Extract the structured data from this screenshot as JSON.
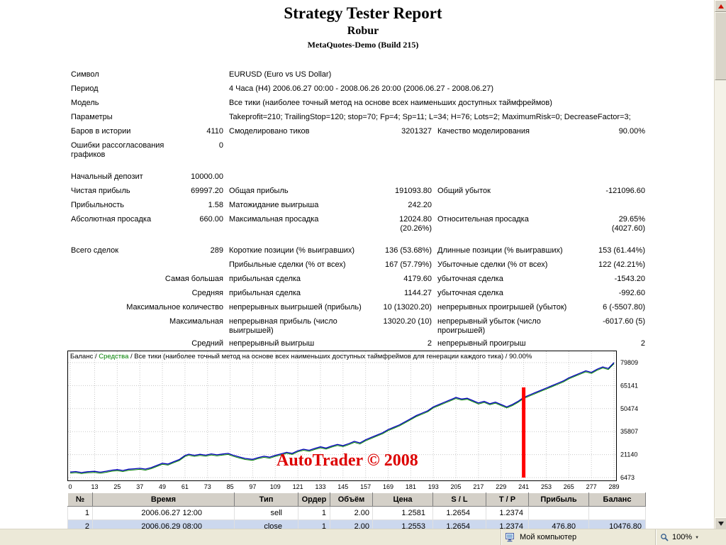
{
  "header": {
    "title": "Strategy Tester Report",
    "subtitle": "Robur",
    "server": "MetaQuotes-Demo (Build 215)"
  },
  "report": {
    "rows": [
      {
        "cells": [
          {
            "col": 1,
            "cls": "lab",
            "t": "Символ"
          },
          {
            "col": 3,
            "span": 4,
            "cls": "lab",
            "t": "EURUSD (Euro vs US Dollar)"
          }
        ]
      },
      {
        "cells": [
          {
            "col": 1,
            "cls": "lab",
            "t": "Период"
          },
          {
            "col": 3,
            "span": 4,
            "cls": "lab",
            "t": "4 Часа (H4) 2006.06.27 00:00 - 2008.06.26 20:00 (2006.06.27 - 2008.06.27)"
          }
        ]
      },
      {
        "cells": [
          {
            "col": 1,
            "cls": "lab",
            "t": "Модель"
          },
          {
            "col": 3,
            "span": 4,
            "cls": "lab",
            "t": "Все тики (наиболее точный метод на основе всех наименьших доступных таймфреймов)"
          }
        ]
      },
      {
        "cells": [
          {
            "col": 1,
            "cls": "lab",
            "t": "Параметры"
          },
          {
            "col": 3,
            "span": 4,
            "cls": "lab",
            "t": "Takeprofit=210; TrailingStop=120; stop=70; Fp=4; Sp=11; L=34; H=76; Lots=2; MaximumRisk=0; DecreaseFactor=3;"
          }
        ]
      },
      {
        "cells": [
          {
            "col": 1,
            "cls": "lab",
            "t": "Баров в истории"
          },
          {
            "col": 2,
            "cls": "val",
            "t": "4110"
          },
          {
            "col": 3,
            "cls": "lab",
            "t": "Смоделировано тиков"
          },
          {
            "col": 4,
            "cls": "val",
            "t": "3201327"
          },
          {
            "col": 5,
            "cls": "lab",
            "t": "Качество моделирования"
          },
          {
            "col": 6,
            "cls": "val",
            "t": "90.00%"
          }
        ]
      },
      {
        "h2": true,
        "cells": [
          {
            "col": 1,
            "cls": "lab",
            "t": "Ошибки рассогласования\nграфиков"
          },
          {
            "col": 2,
            "cls": "val",
            "t": "0"
          }
        ]
      },
      {
        "spacer": true
      },
      {
        "cells": [
          {
            "col": 1,
            "cls": "lab",
            "t": "Начальный депозит"
          },
          {
            "col": 2,
            "cls": "val",
            "t": "10000.00"
          }
        ]
      },
      {
        "cells": [
          {
            "col": 1,
            "cls": "lab",
            "t": "Чистая прибыль"
          },
          {
            "col": 2,
            "cls": "val",
            "t": "69997.20"
          },
          {
            "col": 3,
            "cls": "lab",
            "t": "Общая прибыль"
          },
          {
            "col": 4,
            "cls": "val",
            "t": "191093.80"
          },
          {
            "col": 5,
            "cls": "lab",
            "t": "Общий убыток"
          },
          {
            "col": 6,
            "cls": "val",
            "t": "-121096.60"
          }
        ]
      },
      {
        "cells": [
          {
            "col": 1,
            "cls": "lab",
            "t": "Прибыльность"
          },
          {
            "col": 2,
            "cls": "val",
            "t": "1.58"
          },
          {
            "col": 3,
            "cls": "lab",
            "t": "Матожидание выигрыша"
          },
          {
            "col": 4,
            "cls": "val",
            "t": "242.20"
          }
        ]
      },
      {
        "h2": true,
        "cells": [
          {
            "col": 1,
            "cls": "lab",
            "t": "Абсолютная просадка"
          },
          {
            "col": 2,
            "cls": "val",
            "t": "660.00"
          },
          {
            "col": 3,
            "cls": "lab",
            "t": "Максимальная просадка"
          },
          {
            "col": 4,
            "cls": "val",
            "t": "12024.80\n(20.26%)"
          },
          {
            "col": 5,
            "cls": "lab",
            "t": "Относительная просадка"
          },
          {
            "col": 6,
            "cls": "val",
            "t": "29.65%\n(4027.60)"
          }
        ]
      },
      {
        "spacer": true
      },
      {
        "cells": [
          {
            "col": 1,
            "cls": "lab",
            "t": "Всего сделок"
          },
          {
            "col": 2,
            "cls": "val",
            "t": "289"
          },
          {
            "col": 3,
            "cls": "lab",
            "t": "Короткие позиции (% выигравших)"
          },
          {
            "col": 4,
            "cls": "val",
            "t": "136 (53.68%)"
          },
          {
            "col": 5,
            "cls": "lab",
            "t": "Длинные позиции (% выигравших)"
          },
          {
            "col": 6,
            "cls": "val",
            "t": "153 (61.44%)"
          }
        ]
      },
      {
        "cells": [
          {
            "col": 3,
            "cls": "lab",
            "t": "Прибыльные сделки (% от всех)"
          },
          {
            "col": 4,
            "cls": "val",
            "t": "167 (57.79%)"
          },
          {
            "col": 5,
            "cls": "lab",
            "t": "Убыточные сделки (% от всех)"
          },
          {
            "col": 6,
            "cls": "val",
            "t": "122 (42.21%)"
          }
        ]
      },
      {
        "cells": [
          {
            "col": 1,
            "span": 2,
            "cls": "val",
            "t": "Самая большая"
          },
          {
            "col": 3,
            "cls": "lab",
            "t": "прибыльная сделка"
          },
          {
            "col": 4,
            "cls": "val",
            "t": "4179.60"
          },
          {
            "col": 5,
            "cls": "lab",
            "t": "убыточная сделка"
          },
          {
            "col": 6,
            "cls": "val",
            "t": "-1543.20"
          }
        ]
      },
      {
        "cells": [
          {
            "col": 1,
            "span": 2,
            "cls": "val",
            "t": "Средняя"
          },
          {
            "col": 3,
            "cls": "lab",
            "t": "прибыльная сделка"
          },
          {
            "col": 4,
            "cls": "val",
            "t": "1144.27"
          },
          {
            "col": 5,
            "cls": "lab",
            "t": "убыточная сделка"
          },
          {
            "col": 6,
            "cls": "val",
            "t": "-992.60"
          }
        ]
      },
      {
        "cells": [
          {
            "col": 1,
            "span": 2,
            "cls": "val",
            "t": "Максимальное количество"
          },
          {
            "col": 3,
            "cls": "lab",
            "t": "непрерывных выигрышей (прибыль)"
          },
          {
            "col": 4,
            "cls": "val",
            "t": "10 (13020.20)"
          },
          {
            "col": 5,
            "cls": "lab",
            "t": "непрерывных проигрышей (убыток)"
          },
          {
            "col": 6,
            "cls": "val",
            "t": "6 (-5507.80)"
          }
        ]
      },
      {
        "h2": true,
        "cells": [
          {
            "col": 1,
            "span": 2,
            "cls": "val",
            "t": "Максимальная"
          },
          {
            "col": 3,
            "cls": "lab",
            "t": "непрерывная прибыль (число\nвыигрышей)"
          },
          {
            "col": 4,
            "cls": "val",
            "t": "13020.20 (10)"
          },
          {
            "col": 5,
            "cls": "lab",
            "t": "непрерывный убыток (число\nпроигрышей)"
          },
          {
            "col": 6,
            "cls": "val",
            "t": "-6017.60 (5)"
          }
        ]
      },
      {
        "cells": [
          {
            "col": 1,
            "span": 2,
            "cls": "val",
            "t": "Средний"
          },
          {
            "col": 3,
            "cls": "lab",
            "t": "непрерывный выигрыш"
          },
          {
            "col": 4,
            "cls": "val",
            "t": "2"
          },
          {
            "col": 5,
            "cls": "lab",
            "t": "непрерывный проигрыш"
          },
          {
            "col": 6,
            "cls": "val",
            "t": "2"
          }
        ]
      }
    ]
  },
  "chart_data": {
    "type": "line",
    "legend": {
      "balance": "Баланс",
      "sep": " / ",
      "equity": "Средства",
      "model": "Все тики (наиболее точный метод на основе всех наименьших доступных таймфреймов для генерации каждого тика)",
      "quality": "90.00%"
    },
    "x_ticks": [
      0,
      13,
      25,
      37,
      49,
      61,
      73,
      85,
      97,
      109,
      121,
      133,
      145,
      157,
      169,
      181,
      193,
      205,
      217,
      229,
      241,
      253,
      265,
      277,
      289
    ],
    "y_ticks": [
      79809,
      65141,
      50474,
      35807,
      21140,
      6473
    ],
    "xlim": [
      0,
      289
    ],
    "ylim": [
      6473,
      79809
    ],
    "xlabel": "",
    "ylabel": "",
    "grid": "dotted",
    "balance_color": "#0000b8",
    "equity_color": "#008000",
    "marker": {
      "x": 241,
      "from": 6473,
      "to": 64000,
      "color": "#ff0000"
    },
    "watermark": {
      "text": "AutoTrader © 2008",
      "color": "#dd0000"
    },
    "series": [
      {
        "name": "Баланс",
        "points": [
          [
            0,
            10000
          ],
          [
            3,
            10300
          ],
          [
            6,
            9700
          ],
          [
            9,
            10200
          ],
          [
            13,
            10477
          ],
          [
            16,
            9900
          ],
          [
            19,
            10500
          ],
          [
            22,
            11200
          ],
          [
            25,
            11600
          ],
          [
            28,
            11000
          ],
          [
            31,
            11800
          ],
          [
            34,
            12100
          ],
          [
            37,
            12400
          ],
          [
            40,
            11900
          ],
          [
            43,
            12800
          ],
          [
            46,
            14200
          ],
          [
            49,
            15600
          ],
          [
            52,
            15100
          ],
          [
            55,
            16600
          ],
          [
            58,
            18000
          ],
          [
            61,
            20600
          ],
          [
            63,
            21400
          ],
          [
            66,
            20700
          ],
          [
            69,
            21300
          ],
          [
            72,
            20800
          ],
          [
            75,
            21600
          ],
          [
            78,
            21000
          ],
          [
            81,
            21500
          ],
          [
            84,
            21900
          ],
          [
            87,
            20600
          ],
          [
            90,
            19600
          ],
          [
            93,
            18700
          ],
          [
            97,
            18100
          ],
          [
            100,
            19300
          ],
          [
            103,
            20100
          ],
          [
            106,
            19500
          ],
          [
            109,
            20700
          ],
          [
            112,
            21600
          ],
          [
            115,
            22600
          ],
          [
            118,
            21900
          ],
          [
            121,
            23600
          ],
          [
            124,
            24600
          ],
          [
            127,
            23900
          ],
          [
            130,
            25100
          ],
          [
            133,
            26100
          ],
          [
            136,
            25300
          ],
          [
            139,
            26600
          ],
          [
            142,
            27600
          ],
          [
            145,
            26900
          ],
          [
            148,
            28100
          ],
          [
            151,
            29600
          ],
          [
            154,
            28600
          ],
          [
            157,
            30600
          ],
          [
            160,
            32100
          ],
          [
            163,
            33600
          ],
          [
            166,
            35100
          ],
          [
            169,
            37100
          ],
          [
            172,
            38600
          ],
          [
            175,
            40100
          ],
          [
            178,
            42100
          ],
          [
            181,
            44100
          ],
          [
            184,
            46100
          ],
          [
            187,
            47600
          ],
          [
            190,
            49100
          ],
          [
            193,
            51600
          ],
          [
            196,
            53100
          ],
          [
            199,
            54600
          ],
          [
            202,
            56100
          ],
          [
            205,
            57600
          ],
          [
            208,
            56600
          ],
          [
            211,
            57100
          ],
          [
            214,
            55600
          ],
          [
            217,
            54100
          ],
          [
            220,
            55100
          ],
          [
            223,
            53600
          ],
          [
            226,
            54600
          ],
          [
            229,
            53100
          ],
          [
            232,
            51600
          ],
          [
            235,
            53100
          ],
          [
            238,
            55100
          ],
          [
            241,
            57600
          ],
          [
            244,
            59100
          ],
          [
            247,
            60600
          ],
          [
            250,
            62100
          ],
          [
            253,
            63600
          ],
          [
            256,
            65100
          ],
          [
            259,
            66600
          ],
          [
            262,
            68100
          ],
          [
            265,
            70100
          ],
          [
            268,
            71600
          ],
          [
            271,
            73100
          ],
          [
            274,
            74600
          ],
          [
            277,
            73600
          ],
          [
            280,
            75600
          ],
          [
            283,
            77100
          ],
          [
            286,
            76100
          ],
          [
            289,
            79809
          ]
        ]
      }
    ]
  },
  "trades": {
    "headers": [
      "№",
      "Время",
      "Тип",
      "Ордер",
      "Объём",
      "Цена",
      "S / L",
      "T / P",
      "Прибыль",
      "Баланс"
    ],
    "rows": [
      {
        "selected": false,
        "cells": [
          "1",
          "2006.06.27 12:00",
          "sell",
          "1",
          "2.00",
          "1.2581",
          "1.2654",
          "1.2374",
          "",
          ""
        ]
      },
      {
        "selected": true,
        "cells": [
          "2",
          "2006.06.29 08:00",
          "close",
          "1",
          "2.00",
          "1.2553",
          "1.2654",
          "1.2374",
          "476.80",
          "10476.80"
        ]
      }
    ]
  },
  "status_bar": {
    "zone_label": "Мой компьютер",
    "zoom_label": "100%"
  }
}
